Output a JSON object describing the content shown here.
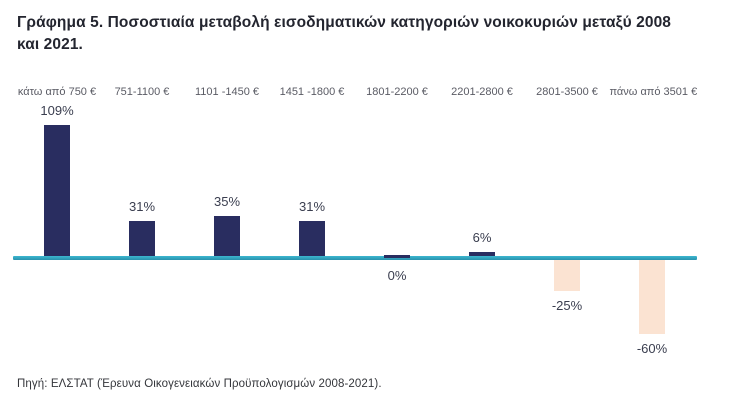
{
  "title": "Γράφημα 5. Ποσοστιαία μεταβολή εισοδηματικών κατηγοριών νοικοκυριών μεταξύ 2008 και 2021.",
  "source": "Πηγή: ΕΛΣΤΑΤ (Έρευνα Οικογενειακών Προϋπολογισμών 2008-2021).",
  "chart_data": {
    "type": "bar",
    "title": "Γράφημα 5. Ποσοστιαία μεταβολή εισοδηματικών κατηγοριών νοικοκυριών μεταξύ 2008 και 2021.",
    "categories": [
      "κάτω από 750 €",
      "751-1100 €",
      "1101 -1450 €",
      "1451 -1800 €",
      "1801-2200 €",
      "2201-2800 €",
      "2801-3500 €",
      "πάνω από 3501 €"
    ],
    "values": [
      109,
      31,
      35,
      31,
      0,
      6,
      -25,
      -60
    ],
    "value_labels": [
      "109%",
      "31%",
      "35%",
      "31%",
      "0%",
      "6%",
      "-25%",
      "-60%"
    ],
    "xlabel": "",
    "ylabel": "",
    "ylim": [
      -70,
      115
    ],
    "grid": false,
    "legend": null,
    "colors": {
      "positive": "#292d60",
      "negative": "#fbe3d2",
      "baseline": "#2ea6c2"
    }
  }
}
